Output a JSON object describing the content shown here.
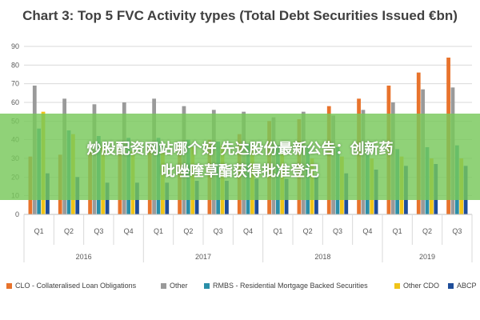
{
  "chart_data": {
    "type": "bar",
    "title": "Chart 3: Top 5 FVC Activity types (Total Debt Securities Issued €bn)",
    "categories": [
      "Q1",
      "Q2",
      "Q3",
      "Q4",
      "Q1",
      "Q2",
      "Q3",
      "Q4",
      "Q1",
      "Q2",
      "Q3",
      "Q4",
      "Q1",
      "Q2",
      "Q3"
    ],
    "years": [
      {
        "label": "2016",
        "span": 4
      },
      {
        "label": "2017",
        "span": 4
      },
      {
        "label": "2018",
        "span": 4
      },
      {
        "label": "2019",
        "span": 3
      }
    ],
    "ylim": [
      0,
      90
    ],
    "yticks": [
      0,
      10,
      20,
      30,
      40,
      50,
      60,
      70,
      80,
      90
    ],
    "grid": true,
    "legend_position": "bottom",
    "series": [
      {
        "name": "CLO - Collateralised Loan Obligations",
        "color": "#e8732c",
        "values": [
          31,
          32,
          34,
          35,
          36,
          37,
          40,
          43,
          50,
          51,
          58,
          62,
          69,
          76,
          84
        ]
      },
      {
        "name": "Other",
        "color": "#9a9a9a",
        "values": [
          69,
          62,
          59,
          60,
          62,
          58,
          56,
          55,
          52,
          55,
          53,
          56,
          60,
          67,
          68
        ]
      },
      {
        "name": "RMBS - Residential Mortgage Backed Securities",
        "color": "#2a8fa8",
        "values": [
          46,
          45,
          42,
          41,
          41,
          40,
          39,
          38,
          37,
          37,
          36,
          35,
          35,
          36,
          37
        ]
      },
      {
        "name": "Other CDO",
        "color": "#f0c419",
        "values": [
          55,
          43,
          36,
          34,
          34,
          36,
          37,
          36,
          34,
          30,
          31,
          30,
          31,
          30,
          30
        ]
      },
      {
        "name": "ABCP",
        "color": "#1f4e9a",
        "values": [
          22,
          20,
          17,
          17,
          17,
          18,
          18,
          19,
          19,
          21,
          22,
          24,
          26,
          27,
          26
        ]
      }
    ]
  },
  "overlay": {
    "line1": "炒股配资网站哪个好 先达股份最新公告：创新药",
    "line2": "吡唑喹草酯获得批准登记"
  }
}
